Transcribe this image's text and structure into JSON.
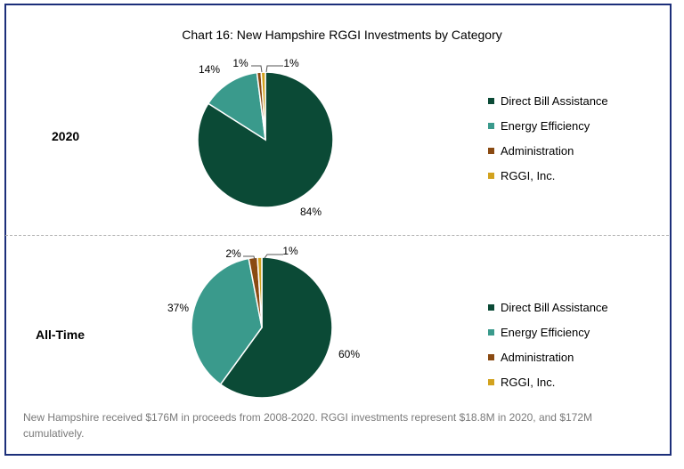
{
  "chart_data": [
    {
      "type": "pie",
      "title": "Chart 16: New Hampshire RGGI Investments by Category",
      "panel_label": "2020",
      "categories": [
        "Direct Bill Assistance",
        "Energy Efficiency",
        "Administration",
        "RGGI, Inc."
      ],
      "values": [
        84,
        14,
        1,
        1
      ],
      "labels": [
        "84%",
        "14%",
        "1%",
        "1%"
      ],
      "colors": [
        "#0b4a36",
        "#3a9a8c",
        "#8a4a12",
        "#d2a21e"
      ]
    },
    {
      "type": "pie",
      "panel_label": "All-Time",
      "categories": [
        "Direct Bill Assistance",
        "Energy Efficiency",
        "Administration",
        "RGGI, Inc."
      ],
      "values": [
        60,
        37,
        2,
        1
      ],
      "labels": [
        "60%",
        "37%",
        "2%",
        "1%"
      ],
      "colors": [
        "#0b4a36",
        "#3a9a8c",
        "#8a4a12",
        "#d2a21e"
      ]
    }
  ],
  "footnote": "New Hampshire received $176M in proceeds from 2008-2020. RGGI investments represent $18.8M in 2020, and $172M cumulatively."
}
